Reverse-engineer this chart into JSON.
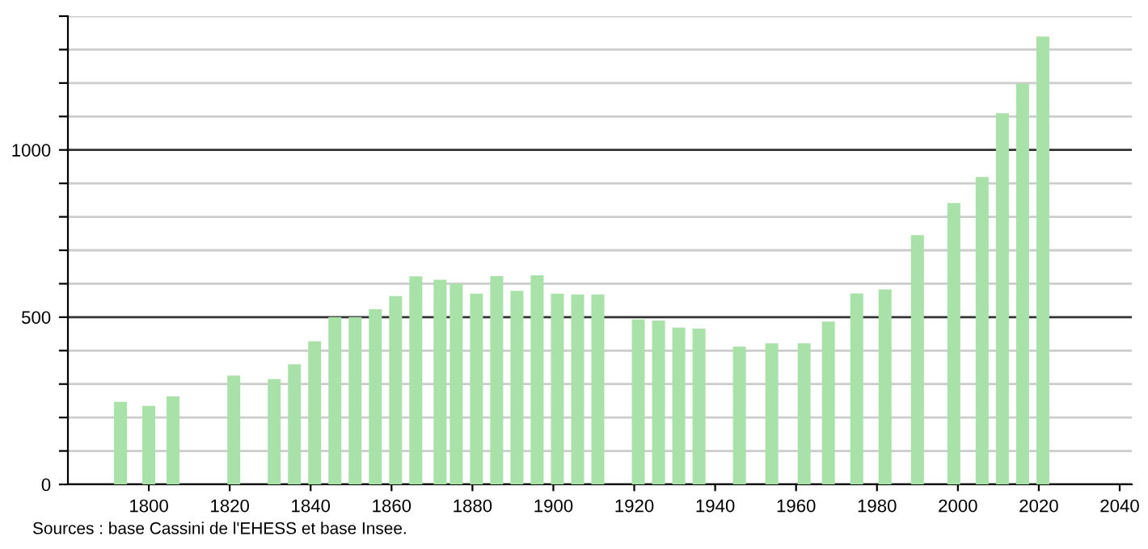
{
  "chart_data": {
    "type": "bar",
    "x": [
      1793,
      1800,
      1806,
      1821,
      1831,
      1836,
      1841,
      1846,
      1851,
      1856,
      1861,
      1866,
      1872,
      1876,
      1881,
      1886,
      1891,
      1896,
      1901,
      1906,
      1911,
      1921,
      1926,
      1931,
      1936,
      1946,
      1954,
      1962,
      1968,
      1975,
      1982,
      1990,
      1999,
      2006,
      2011,
      2016,
      2021
    ],
    "values": [
      247,
      235,
      263,
      325,
      315,
      359,
      428,
      500,
      500,
      524,
      563,
      622,
      612,
      600,
      570,
      623,
      579,
      625,
      570,
      568,
      568,
      493,
      490,
      469,
      466,
      412,
      422,
      422,
      487,
      571,
      583,
      745,
      841,
      919,
      1110,
      1198,
      1339
    ],
    "color": "#a8e2a8",
    "xlim": [
      1780,
      2043
    ],
    "xticks": [
      1800,
      1820,
      1840,
      1860,
      1880,
      1900,
      1920,
      1940,
      1960,
      1980,
      2000,
      2020,
      2040
    ],
    "ylim": [
      0,
      1400
    ],
    "yticks": [
      0,
      {
        "value": 100,
        "label": null
      },
      {
        "value": 200,
        "label": null
      },
      {
        "value": 300,
        "label": null
      },
      {
        "value": 400,
        "label": null
      },
      500,
      {
        "value": 600,
        "label": null
      },
      {
        "value": 700,
        "label": null
      },
      {
        "value": 800,
        "label": null
      },
      {
        "value": 900,
        "label": null
      },
      1000,
      {
        "value": 1100,
        "label": null
      },
      {
        "value": 1200,
        "label": null
      },
      {
        "value": 1300,
        "label": null
      },
      {
        "value": 1400,
        "label": null
      }
    ],
    "grid": "y",
    "annotations": [
      "Sources : base Cassini de l'EHESS et base Insee."
    ]
  }
}
